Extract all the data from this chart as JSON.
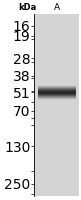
{
  "kda_labels": [
    "250",
    "130",
    "70",
    "51",
    "38",
    "28",
    "19",
    "16"
  ],
  "kda_values": [
    250,
    130,
    70,
    51,
    38,
    28,
    19,
    16
  ],
  "lane_label": "A",
  "band_kda": 51,
  "gel_bg_color": "#d4d4d4",
  "band_color": "#1a1a1a",
  "label_color": "#000000",
  "fig_bg_color": "#ffffff",
  "y_min": 13,
  "y_max": 310,
  "tick_fontsize": 6.0,
  "lane_label_fontsize": 6.5
}
